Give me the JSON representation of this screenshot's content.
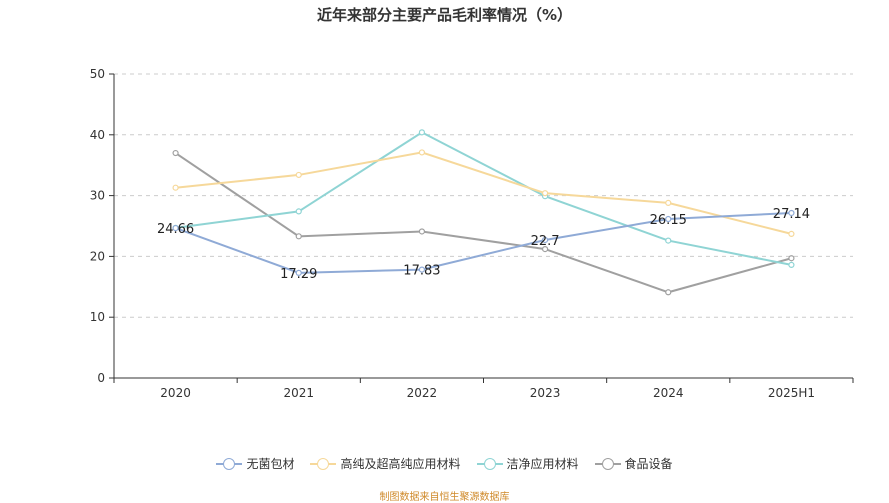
{
  "chart_data": {
    "type": "line",
    "title": "近年来部分主要产品毛利率情况（%）",
    "categories": [
      "2020",
      "2021",
      "2022",
      "2023",
      "2024",
      "2025H1"
    ],
    "ylim": [
      0,
      50
    ],
    "yticks": [
      0,
      10,
      20,
      30,
      40,
      50
    ],
    "grid": true,
    "legend_position": "bottom",
    "series": [
      {
        "name": "无菌包材",
        "color": "#8faad6",
        "values": [
          24.66,
          17.29,
          17.83,
          22.7,
          26.15,
          27.14
        ],
        "labels": [
          "24.66",
          "17.29",
          "17.83",
          "22.7",
          "26.15",
          "27.14"
        ]
      },
      {
        "name": "高纯及超高纯应用材料",
        "color": "#f6d89a",
        "values": [
          31.3,
          33.4,
          37.1,
          30.4,
          28.8,
          23.7
        ]
      },
      {
        "name": "洁净应用材料",
        "color": "#8fd4d4",
        "values": [
          24.7,
          27.4,
          40.4,
          29.9,
          22.6,
          18.6
        ]
      },
      {
        "name": "食品设备",
        "color": "#a0a0a0",
        "values": [
          37.0,
          23.3,
          24.1,
          21.2,
          14.1,
          19.7
        ]
      }
    ],
    "source_note": "制图数据来自恒生聚源数据库"
  }
}
